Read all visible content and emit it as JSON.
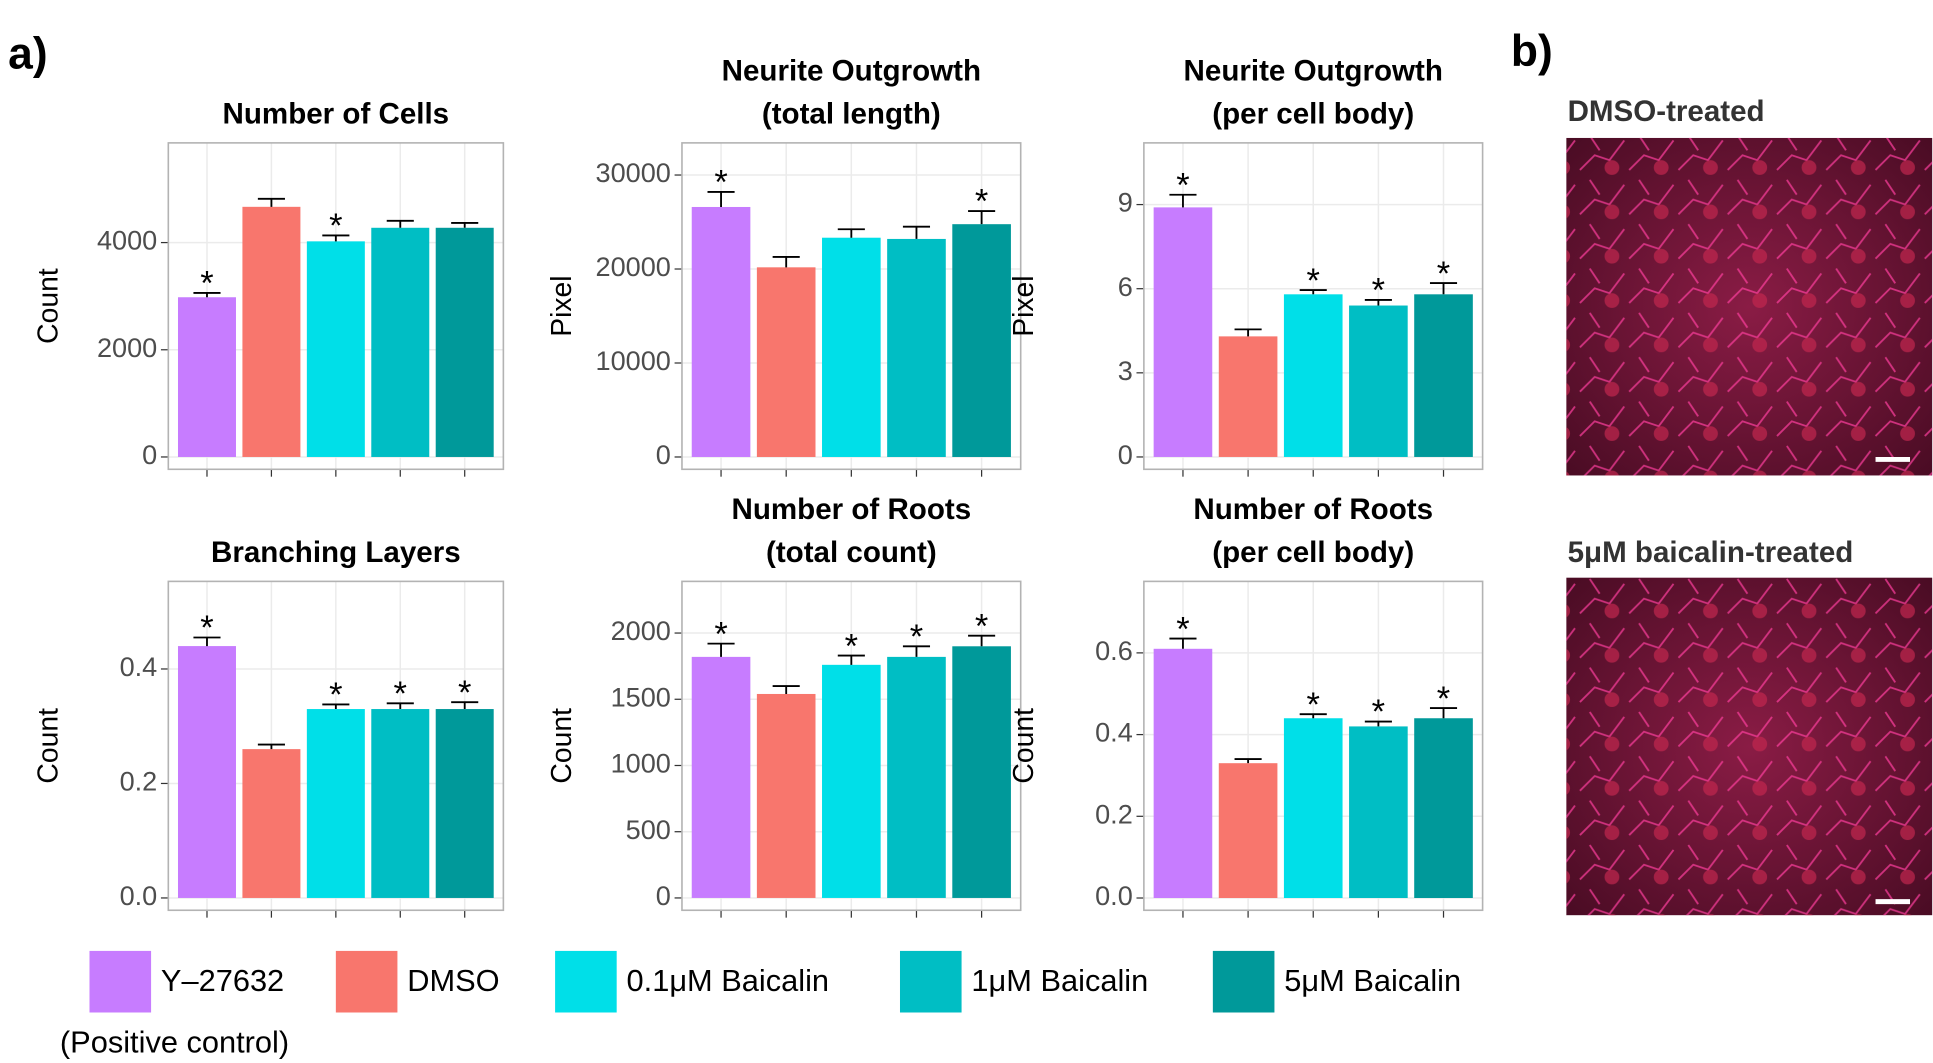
{
  "panel_labels": [
    "a)",
    "b)"
  ],
  "legend": {
    "items": [
      {
        "name": "Y–27632",
        "color": "#c77cff"
      },
      {
        "name": "DMSO",
        "color": "#f8766d"
      },
      {
        "name": "0.1μM Baicalin",
        "color": "#00dfe8"
      },
      {
        "name": "1μM Baicalin",
        "color": "#00bec4"
      },
      {
        "name": "5μM Baicalin",
        "color": "#00999a"
      }
    ],
    "note": "(Positive control)"
  },
  "images": [
    {
      "label": "DMSO-treated"
    },
    {
      "label": "5μM baicalin-treated"
    }
  ],
  "chart_data": [
    {
      "type": "bar",
      "title": [
        "Number of Cells"
      ],
      "ylabel": "Count",
      "values": [
        2980,
        4667,
        4023,
        4276,
        4276
      ],
      "errors": [
        80,
        150,
        110,
        130,
        90
      ],
      "annotations": [
        "*",
        null,
        "*",
        null,
        null
      ],
      "ylim": [
        -230,
        5860
      ],
      "yticks": [
        0,
        2000,
        4000
      ],
      "grid": true
    },
    {
      "type": "bar",
      "title": [
        "Neurite Outgrowth",
        "(total length)"
      ],
      "ylabel": "Pixel",
      "values": [
        26600,
        20180,
        23330,
        23200,
        24770
      ],
      "errors": [
        1600,
        1100,
        900,
        1300,
        1400
      ],
      "annotations": [
        "*",
        null,
        null,
        null,
        "*"
      ],
      "ylim": [
        -1310,
        33420
      ],
      "yticks": [
        0,
        10000,
        20000,
        30000
      ],
      "grid": true
    },
    {
      "type": "bar",
      "title": [
        "Neurite Outgrowth",
        "(per cell body)"
      ],
      "ylabel": "Pixel",
      "values": [
        8.9,
        4.3,
        5.8,
        5.4,
        5.8
      ],
      "errors": [
        0.45,
        0.25,
        0.15,
        0.2,
        0.4
      ],
      "annotations": [
        "*",
        null,
        "*",
        "*",
        "*"
      ],
      "ylim": [
        -0.44,
        11.2
      ],
      "yticks": [
        0,
        3,
        6,
        9
      ],
      "grid": true
    },
    {
      "type": "bar",
      "title": [
        "Branching Layers"
      ],
      "ylabel": "Count",
      "values": [
        0.44,
        0.26,
        0.33,
        0.33,
        0.33
      ],
      "errors": [
        0.015,
        0.008,
        0.008,
        0.01,
        0.012
      ],
      "annotations": [
        "*",
        null,
        "*",
        "*",
        "*"
      ],
      "ylim": [
        -0.0215,
        0.553
      ],
      "yticks": [
        {
          "value": 0,
          "label": "0.0"
        },
        0.2,
        0.4
      ],
      "grid": true
    },
    {
      "type": "bar",
      "title": [
        "Number of Roots",
        "(total count)"
      ],
      "ylabel": "Count",
      "values": [
        1820,
        1540,
        1760,
        1820,
        1900
      ],
      "errors": [
        100,
        60,
        70,
        80,
        80
      ],
      "annotations": [
        "*",
        null,
        "*",
        "*",
        "*"
      ],
      "ylim": [
        -93,
        2390
      ],
      "yticks": [
        0,
        500,
        1000,
        1500,
        2000
      ],
      "grid": true
    },
    {
      "type": "bar",
      "title": [
        "Number of Roots",
        "(per cell body)"
      ],
      "ylabel": "Count",
      "values": [
        0.61,
        0.33,
        0.44,
        0.42,
        0.44
      ],
      "errors": [
        0.025,
        0.01,
        0.01,
        0.012,
        0.025
      ],
      "annotations": [
        "*",
        null,
        "*",
        "*",
        "*"
      ],
      "ylim": [
        -0.03,
        0.775
      ],
      "yticks": [
        {
          "value": 0,
          "label": "0.0"
        },
        0.2,
        0.4,
        0.6
      ],
      "grid": true
    }
  ]
}
